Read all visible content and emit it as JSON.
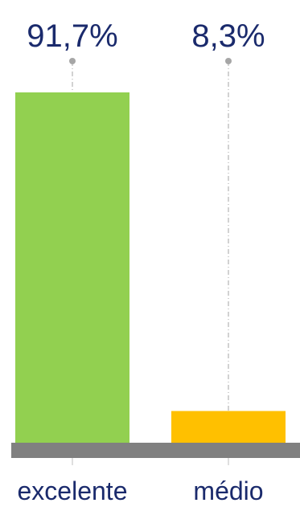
{
  "chart_data": {
    "type": "bar",
    "categories": [
      "excelente",
      "médio"
    ],
    "values": [
      91.7,
      8.3
    ],
    "value_labels": [
      "91,7%",
      "8,3%"
    ],
    "colors": [
      "#92d050",
      "#ffc000"
    ],
    "ylim": [
      0,
      100
    ],
    "axis_color": "#808080",
    "leader_color": "#a6a6a6",
    "label_color": "#1a2a6c",
    "grid": false,
    "legend": "none"
  }
}
